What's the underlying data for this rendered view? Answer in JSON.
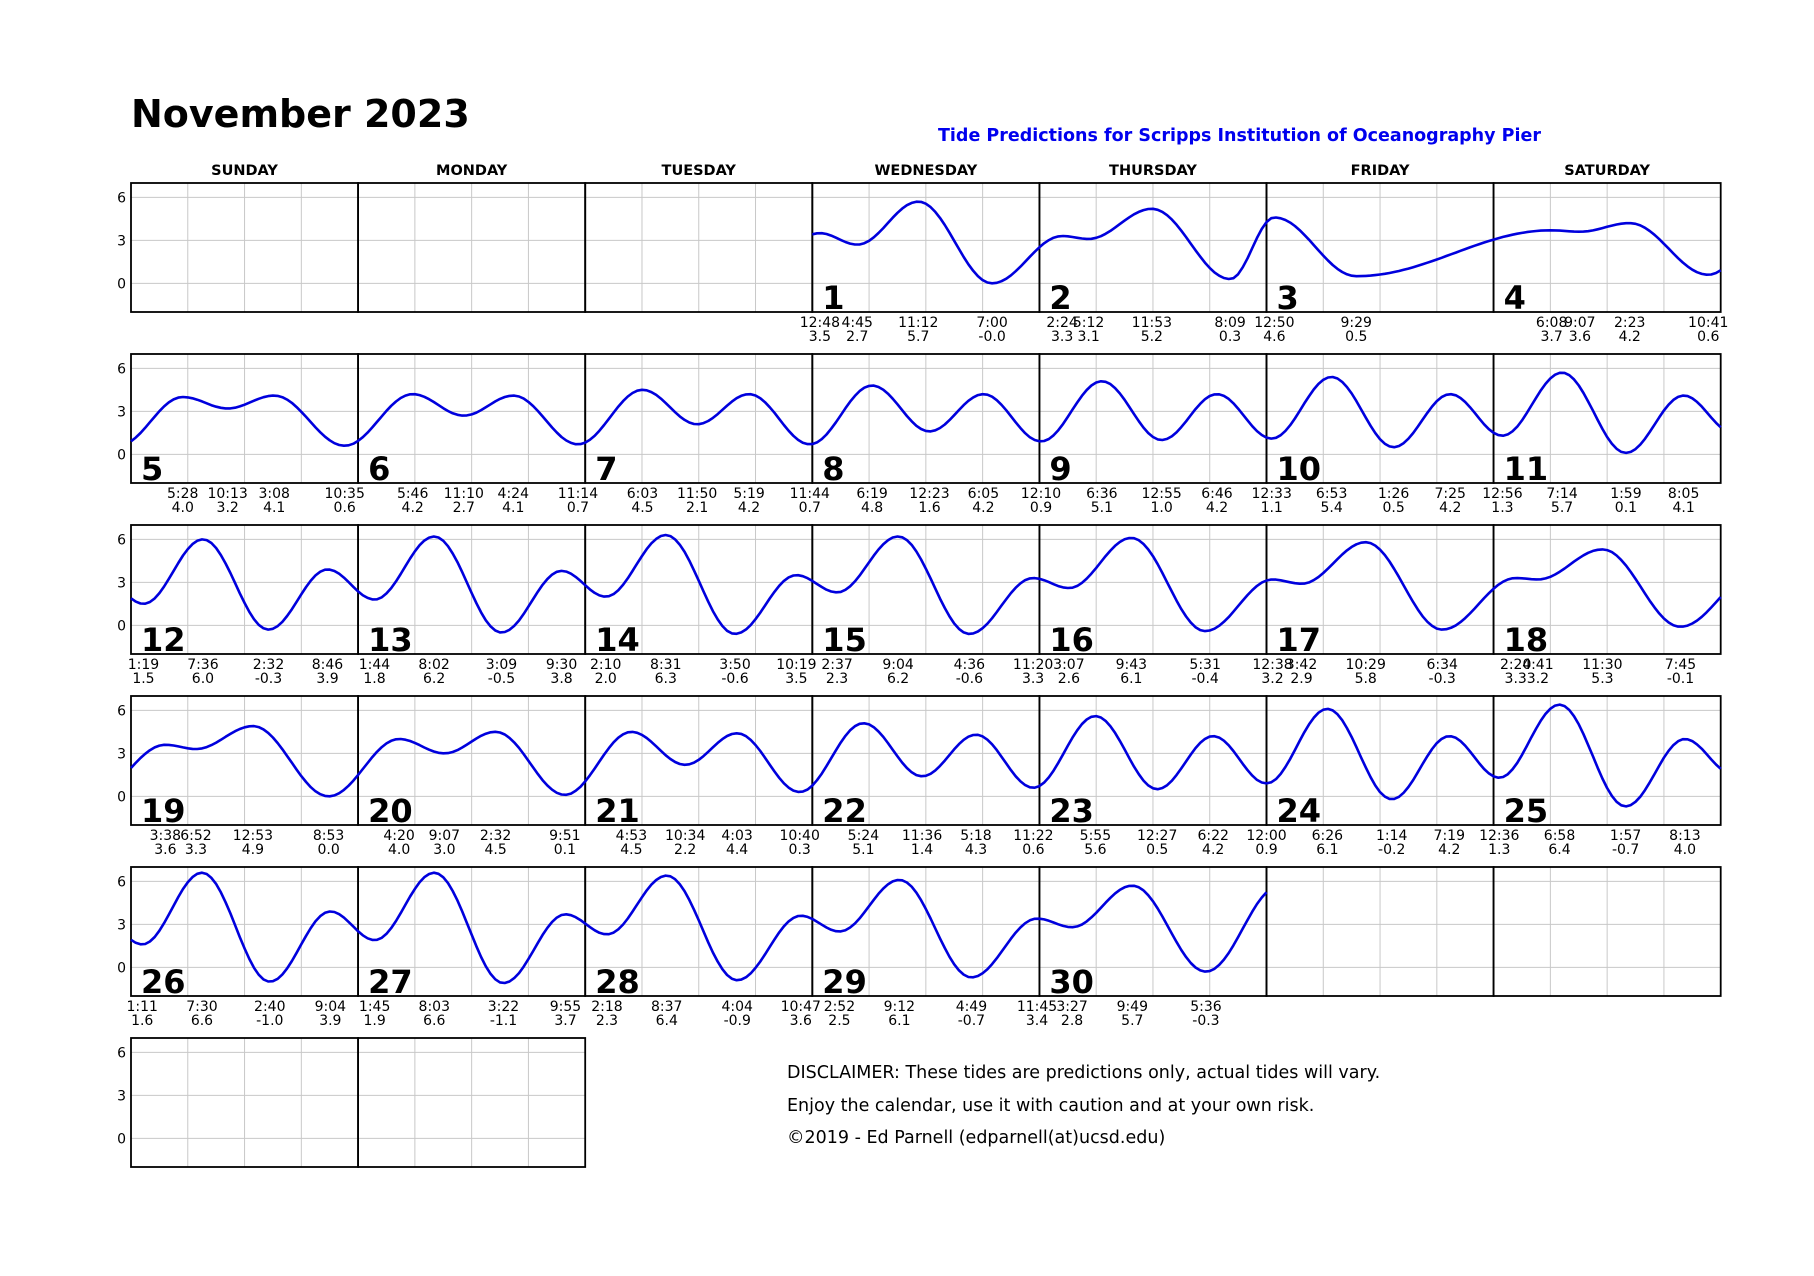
{
  "title": "November 2023",
  "subtitle": "Tide Predictions for Scripps Institution of Oceanography Pier",
  "disclaimer": {
    "line1": "DISCLAIMER: These tides are predictions only, actual tides will vary.",
    "line2": "Enjoy the calendar, use it with caution and at your own risk.",
    "line3": "©2019 - Ed Parnell (edparnell(at)ucsd.edu)"
  },
  "colors": {
    "curve": "#0000dd",
    "grid": "#c8c8c8",
    "frame": "#000000",
    "subtitle": "#0000ee"
  },
  "chart_data": {
    "type": "line",
    "title": "November 2023",
    "subtitle": "Tide Predictions for Scripps Institution of Oceanography Pier",
    "y_ticks": [
      6,
      3,
      0
    ],
    "ylim": [
      -2,
      7
    ],
    "grid": true,
    "weekdays": [
      "SUNDAY",
      "MONDAY",
      "TUESDAY",
      "WEDNESDAY",
      "THURSDAY",
      "FRIDAY",
      "SATURDAY"
    ],
    "first_weekday_index": 3,
    "days": [
      {
        "day": 1,
        "tides": [
          {
            "time": "12:48",
            "h": 3.5
          },
          {
            "time": "4:45",
            "h": 2.7
          },
          {
            "time": "11:12",
            "h": 5.7
          },
          {
            "time": "7:00",
            "h": -0.0,
            "ht": "-0.0"
          }
        ]
      },
      {
        "day": 2,
        "tides": [
          {
            "time": "2:24",
            "h": 3.3
          },
          {
            "time": "5:12",
            "h": 3.1
          },
          {
            "time": "11:53",
            "h": 5.2
          },
          {
            "time": "8:09",
            "h": 0.3
          }
        ]
      },
      {
        "day": 3,
        "tides": [
          {
            "time": "12:50",
            "h": 4.6
          },
          {
            "time": "9:29",
            "h": 0.5
          }
        ]
      },
      {
        "day": 4,
        "tides": [
          {
            "time": "6:08",
            "h": 3.7
          },
          {
            "time": "9:07",
            "h": 3.6
          },
          {
            "time": "2:23",
            "h": 4.2
          },
          {
            "time": "10:41",
            "h": 0.6
          }
        ]
      },
      {
        "day": 5,
        "tides": [
          {
            "time": "5:28",
            "h": 4.0
          },
          {
            "time": "10:13",
            "h": 3.2
          },
          {
            "time": "3:08",
            "h": 4.1
          },
          {
            "time": "10:35",
            "h": 0.6
          }
        ]
      },
      {
        "day": 6,
        "tides": [
          {
            "time": "5:46",
            "h": 4.2
          },
          {
            "time": "11:10",
            "h": 2.7
          },
          {
            "time": "4:24",
            "h": 4.1
          },
          {
            "time": "11:14",
            "h": 0.7
          }
        ]
      },
      {
        "day": 7,
        "tides": [
          {
            "time": "6:03",
            "h": 4.5
          },
          {
            "time": "11:50",
            "h": 2.1
          },
          {
            "time": "5:19",
            "h": 4.2
          },
          {
            "time": "11:44",
            "h": 0.7
          }
        ]
      },
      {
        "day": 8,
        "tides": [
          {
            "time": "6:19",
            "h": 4.8
          },
          {
            "time": "12:23",
            "h": 1.6
          },
          {
            "time": "6:05",
            "h": 4.2
          }
        ]
      },
      {
        "day": 9,
        "tides": [
          {
            "time": "12:10",
            "h": 0.9
          },
          {
            "time": "6:36",
            "h": 5.1
          },
          {
            "time": "12:55",
            "h": 1.0
          },
          {
            "time": "6:46",
            "h": 4.2
          }
        ]
      },
      {
        "day": 10,
        "tides": [
          {
            "time": "12:33",
            "h": 1.1
          },
          {
            "time": "6:53",
            "h": 5.4
          },
          {
            "time": "1:26",
            "h": 0.5
          },
          {
            "time": "7:25",
            "h": 4.2
          }
        ]
      },
      {
        "day": 11,
        "tides": [
          {
            "time": "12:56",
            "h": 1.3
          },
          {
            "time": "7:14",
            "h": 5.7
          },
          {
            "time": "1:59",
            "h": 0.1
          },
          {
            "time": "8:05",
            "h": 4.1
          }
        ]
      },
      {
        "day": 12,
        "tides": [
          {
            "time": "1:19",
            "h": 1.5
          },
          {
            "time": "7:36",
            "h": 6.0
          },
          {
            "time": "2:32",
            "h": -0.3
          },
          {
            "time": "8:46",
            "h": 3.9
          }
        ]
      },
      {
        "day": 13,
        "tides": [
          {
            "time": "1:44",
            "h": 1.8
          },
          {
            "time": "8:02",
            "h": 6.2
          },
          {
            "time": "3:09",
            "h": -0.5
          },
          {
            "time": "9:30",
            "h": 3.8
          }
        ]
      },
      {
        "day": 14,
        "tides": [
          {
            "time": "2:10",
            "h": 2.0
          },
          {
            "time": "8:31",
            "h": 6.3
          },
          {
            "time": "3:50",
            "h": -0.6
          },
          {
            "time": "10:19",
            "h": 3.5
          }
        ]
      },
      {
        "day": 15,
        "tides": [
          {
            "time": "2:37",
            "h": 2.3
          },
          {
            "time": "9:04",
            "h": 6.2
          },
          {
            "time": "4:36",
            "h": -0.6
          },
          {
            "time": "11:20",
            "h": 3.3
          }
        ]
      },
      {
        "day": 16,
        "tides": [
          {
            "time": "3:07",
            "h": 2.6
          },
          {
            "time": "9:43",
            "h": 6.1
          },
          {
            "time": "5:31",
            "h": -0.4
          }
        ]
      },
      {
        "day": 17,
        "tides": [
          {
            "time": "12:38",
            "h": 3.2
          },
          {
            "time": "3:42",
            "h": 2.9
          },
          {
            "time": "10:29",
            "h": 5.8
          },
          {
            "time": "6:34",
            "h": -0.3
          }
        ]
      },
      {
        "day": 18,
        "tides": [
          {
            "time": "2:20",
            "h": 3.3
          },
          {
            "time": "4:41",
            "h": 3.2
          },
          {
            "time": "11:30",
            "h": 5.3
          },
          {
            "time": "7:45",
            "h": -0.1
          }
        ]
      },
      {
        "day": 19,
        "tides": [
          {
            "time": "3:38",
            "h": 3.6
          },
          {
            "time": "6:52",
            "h": 3.3
          },
          {
            "time": "12:53",
            "h": 4.9
          },
          {
            "time": "8:53",
            "h": 0.0
          }
        ]
      },
      {
        "day": 20,
        "tides": [
          {
            "time": "4:20",
            "h": 4.0
          },
          {
            "time": "9:07",
            "h": 3.0
          },
          {
            "time": "2:32",
            "h": 4.5
          },
          {
            "time": "9:51",
            "h": 0.1
          }
        ]
      },
      {
        "day": 21,
        "tides": [
          {
            "time": "4:53",
            "h": 4.5
          },
          {
            "time": "10:34",
            "h": 2.2
          },
          {
            "time": "4:03",
            "h": 4.4
          },
          {
            "time": "10:40",
            "h": 0.3
          }
        ]
      },
      {
        "day": 22,
        "tides": [
          {
            "time": "5:24",
            "h": 5.1
          },
          {
            "time": "11:36",
            "h": 1.4
          },
          {
            "time": "5:18",
            "h": 4.3
          },
          {
            "time": "11:22",
            "h": 0.6
          }
        ]
      },
      {
        "day": 23,
        "tides": [
          {
            "time": "5:55",
            "h": 5.6
          },
          {
            "time": "12:27",
            "h": 0.5
          },
          {
            "time": "6:22",
            "h": 4.2
          }
        ]
      },
      {
        "day": 24,
        "tides": [
          {
            "time": "12:00",
            "h": 0.9
          },
          {
            "time": "6:26",
            "h": 6.1
          },
          {
            "time": "1:14",
            "h": -0.2
          },
          {
            "time": "7:19",
            "h": 4.2
          }
        ]
      },
      {
        "day": 25,
        "tides": [
          {
            "time": "12:36",
            "h": 1.3
          },
          {
            "time": "6:58",
            "h": 6.4
          },
          {
            "time": "1:57",
            "h": -0.7
          },
          {
            "time": "8:13",
            "h": 4.0
          }
        ]
      },
      {
        "day": 26,
        "tides": [
          {
            "time": "1:11",
            "h": 1.6
          },
          {
            "time": "7:30",
            "h": 6.6
          },
          {
            "time": "2:40",
            "h": -1.0
          },
          {
            "time": "9:04",
            "h": 3.9
          }
        ]
      },
      {
        "day": 27,
        "tides": [
          {
            "time": "1:45",
            "h": 1.9
          },
          {
            "time": "8:03",
            "h": 6.6
          },
          {
            "time": "3:22",
            "h": -1.1
          },
          {
            "time": "9:55",
            "h": 3.7
          }
        ]
      },
      {
        "day": 28,
        "tides": [
          {
            "time": "2:18",
            "h": 2.3
          },
          {
            "time": "8:37",
            "h": 6.4
          },
          {
            "time": "4:04",
            "h": -0.9
          },
          {
            "time": "10:47",
            "h": 3.6
          }
        ]
      },
      {
        "day": 29,
        "tides": [
          {
            "time": "2:52",
            "h": 2.5
          },
          {
            "time": "9:12",
            "h": 6.1
          },
          {
            "time": "4:49",
            "h": -0.7
          },
          {
            "time": "11:45",
            "h": 3.4
          }
        ]
      },
      {
        "day": 30,
        "tides": [
          {
            "time": "3:27",
            "h": 2.8
          },
          {
            "time": "9:49",
            "h": 5.7
          },
          {
            "time": "5:36",
            "h": -0.3
          }
        ]
      }
    ]
  }
}
